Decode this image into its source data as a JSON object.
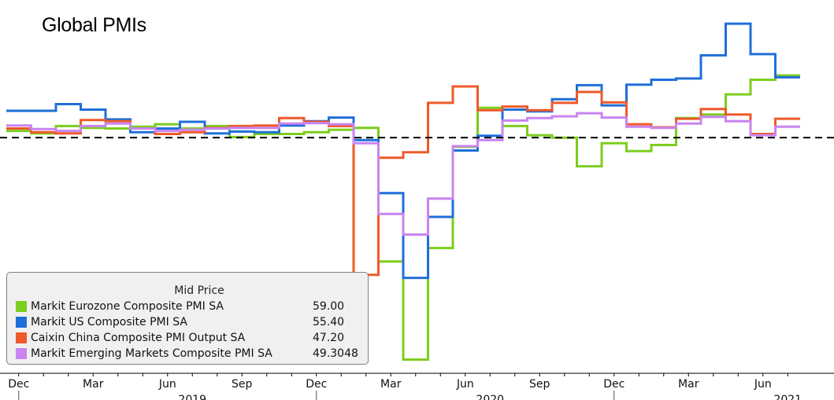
{
  "chart_data": {
    "type": "line",
    "title": "Global PMIs",
    "x": [
      "2018-12",
      "2019-01",
      "2019-02",
      "2019-03",
      "2019-04",
      "2019-05",
      "2019-06",
      "2019-07",
      "2019-08",
      "2019-09",
      "2019-10",
      "2019-11",
      "2019-12",
      "2020-01",
      "2020-02",
      "2020-03",
      "2020-04",
      "2020-05",
      "2020-06",
      "2020-07",
      "2020-08",
      "2020-09",
      "2020-10",
      "2020-11",
      "2020-12",
      "2021-01",
      "2021-02",
      "2021-03",
      "2021-04",
      "2021-05",
      "2021-06",
      "2021-07"
    ],
    "reference_line": 50,
    "ylim": [
      12,
      70
    ],
    "series": [
      {
        "name": "Markit Eurozone Composite PMI SA",
        "value": "59.00",
        "color": "#7ccd1e",
        "values": [
          51.1,
          50.7,
          51.9,
          51.6,
          51.5,
          51.8,
          52.2,
          51.5,
          51.9,
          50.1,
          50.6,
          50.6,
          50.9,
          51.3,
          51.6,
          29.7,
          13.6,
          31.9,
          48.5,
          54.9,
          51.9,
          50.4,
          50.0,
          45.3,
          49.1,
          47.8,
          48.8,
          53.2,
          53.8,
          57.1,
          59.5,
          60.2
        ]
      },
      {
        "name": "Markit US Composite PMI SA",
        "value": "55.40",
        "color": "#1f6fd8",
        "values": [
          54.4,
          54.4,
          55.5,
          54.6,
          53.0,
          50.9,
          51.5,
          52.6,
          50.7,
          51.0,
          50.9,
          52.0,
          52.7,
          53.3,
          49.6,
          40.9,
          27.0,
          37.0,
          47.9,
          50.3,
          54.6,
          54.3,
          56.3,
          58.6,
          55.3,
          58.7,
          59.5,
          59.7,
          63.5,
          68.7,
          63.7,
          59.9
        ]
      },
      {
        "name": "Caixin China Composite PMI Output SA",
        "value": "47.20",
        "color": "#ee5a2a",
        "values": [
          51.5,
          50.9,
          50.7,
          52.9,
          52.7,
          51.5,
          50.6,
          50.9,
          51.6,
          51.9,
          52.0,
          53.2,
          52.6,
          51.9,
          27.5,
          46.7,
          47.6,
          55.7,
          58.4,
          54.5,
          55.1,
          54.5,
          55.7,
          57.5,
          55.8,
          52.2,
          51.7,
          53.1,
          54.7,
          53.8,
          50.6,
          53.1
        ]
      },
      {
        "name": "Markit Emerging Markets Composite PMI SA",
        "value": "49.3048",
        "color": "#c984f0",
        "values": [
          52.0,
          51.4,
          51.1,
          51.9,
          52.3,
          51.5,
          51.1,
          51.3,
          51.5,
          51.6,
          51.6,
          52.3,
          52.4,
          52.2,
          49.1,
          37.5,
          34.1,
          40.0,
          48.6,
          49.6,
          52.8,
          53.2,
          53.5,
          54.0,
          53.3,
          51.8,
          51.6,
          52.3,
          53.4,
          52.7,
          50.4,
          51.8
        ]
      }
    ],
    "legend_title": "Mid Price",
    "legend_placement": "bottom-left",
    "x_tick_labels": [
      "Dec",
      "Mar",
      "Jun",
      "Sep",
      "Dec",
      "Mar",
      "Jun",
      "Sep",
      "Dec",
      "Mar",
      "Jun"
    ],
    "x_tick_months": [
      "2018-12",
      "2019-03",
      "2019-06",
      "2019-09",
      "2019-12",
      "2020-03",
      "2020-06",
      "2020-09",
      "2020-12",
      "2021-03",
      "2021-06"
    ],
    "x_year_labels": [
      "2019",
      "2020",
      "2021"
    ],
    "x_year_months": [
      "2019-07",
      "2020-07",
      "2021-07"
    ]
  }
}
